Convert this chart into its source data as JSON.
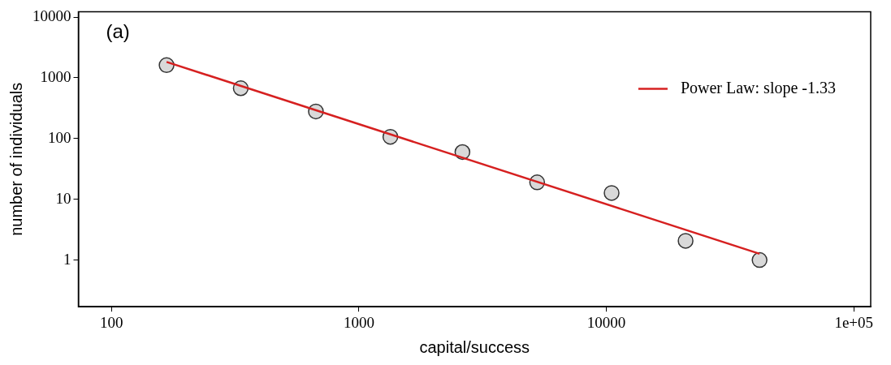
{
  "chart_data": {
    "type": "scatter",
    "xlabel": "capital/success",
    "ylabel": "number of individuals",
    "annotations": [
      "(a)"
    ],
    "log": "xy",
    "grid": false,
    "legend": "top right",
    "marker": "circle",
    "xlim": [
      73.5,
      117000
    ],
    "xticks": [
      100,
      1000,
      10000,
      {
        "value": 100000,
        "label": "1e+05"
      }
    ],
    "ylim": [
      0.17,
      12300
    ],
    "yticks": [
      1,
      10,
      100,
      1000,
      10000
    ],
    "series": [
      {
        "type": "scatter",
        "color": "#d9d9d9",
        "x": [
          167,
          333,
          670,
          1340,
          2620,
          5250,
          10500,
          20900,
          41600
        ],
        "values": [
          1620,
          675,
          280,
          107,
          60,
          19,
          12.7,
          2.07,
          1
        ]
      },
      {
        "type": "line",
        "name": "Power Law: slope -1.33",
        "color": "#d62020",
        "marker": "none",
        "line_style": "solid",
        "x": [
          167,
          41600
        ],
        "values": [
          1830,
          1.27
        ]
      }
    ]
  }
}
